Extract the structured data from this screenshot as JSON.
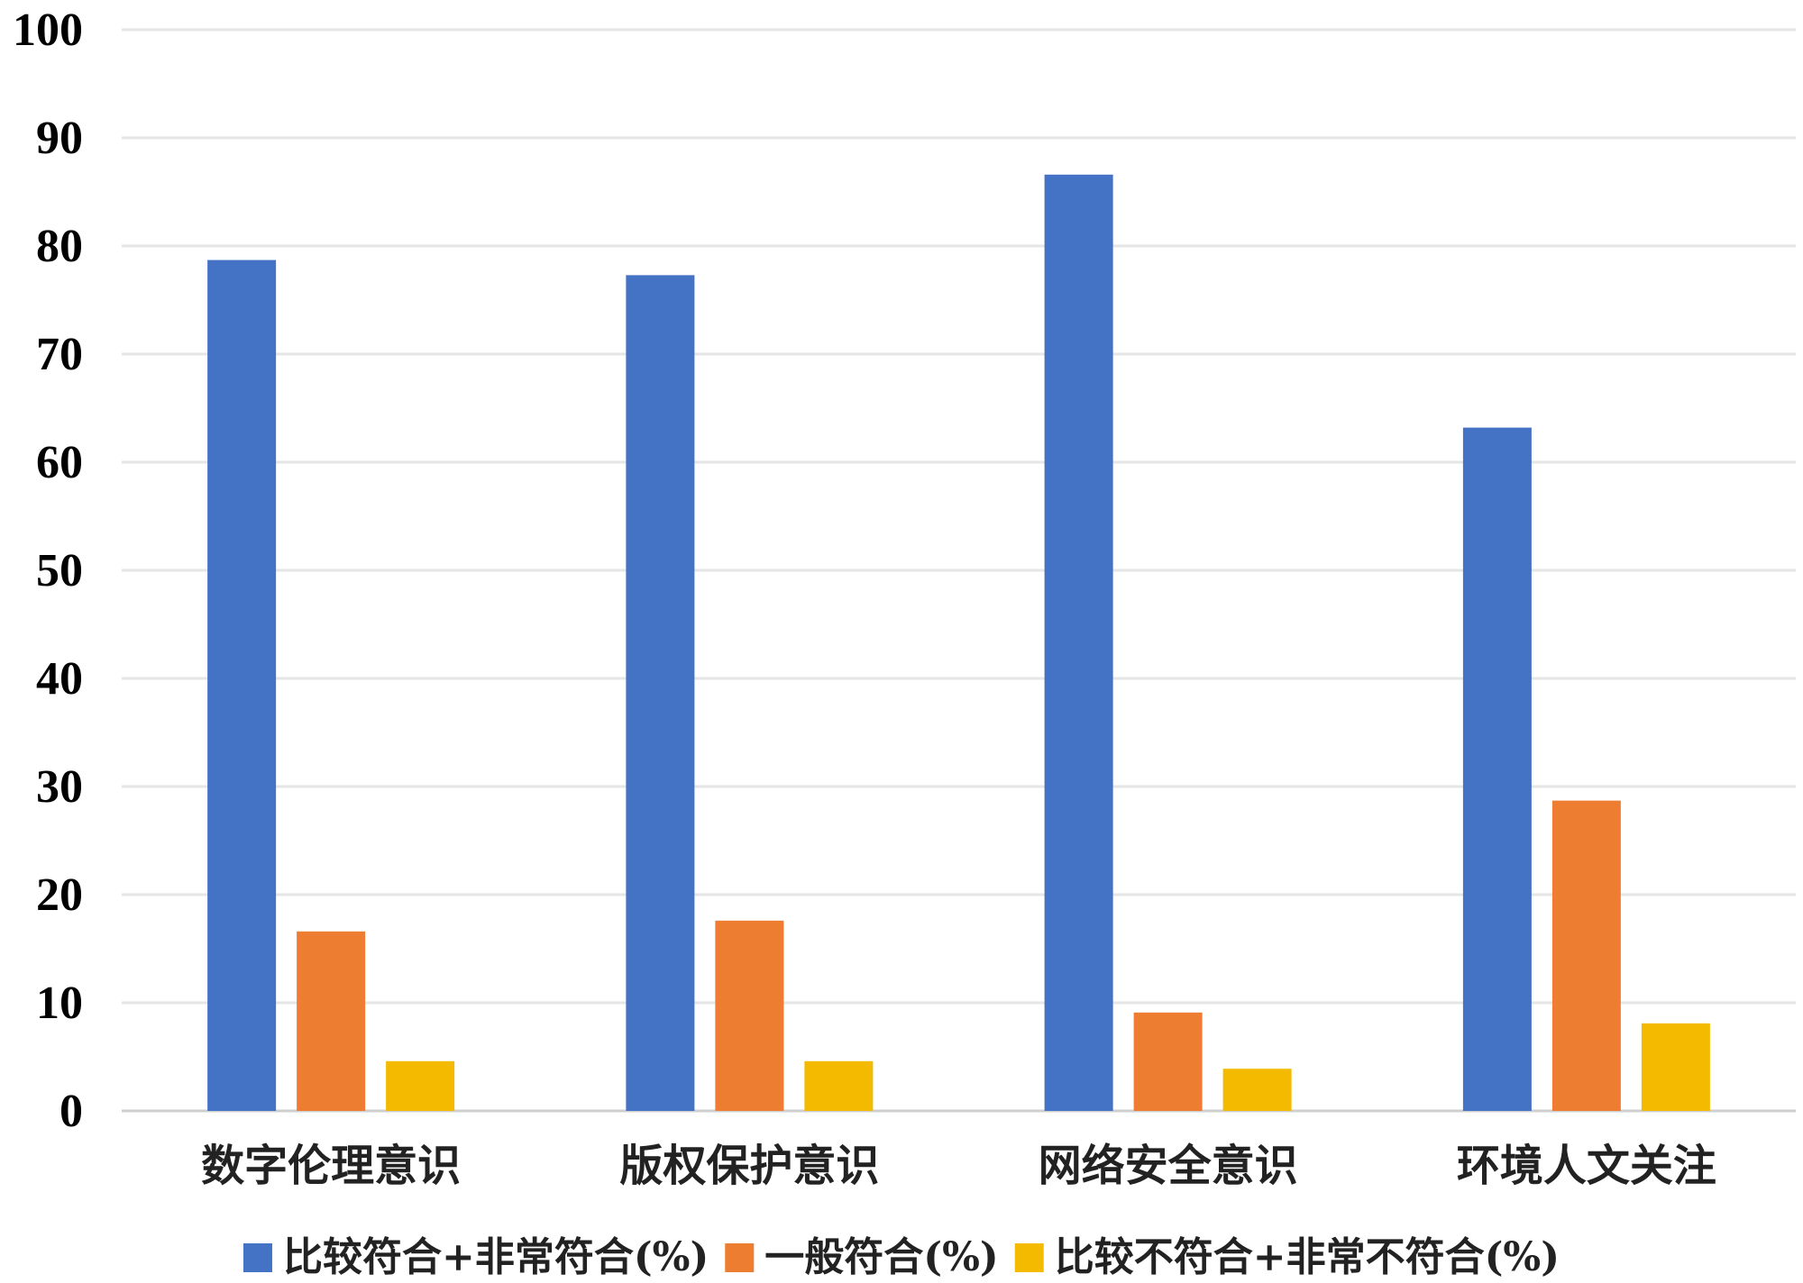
{
  "chart_data": {
    "type": "bar",
    "title": "",
    "xlabel": "",
    "ylabel": "",
    "ylim": [
      0,
      100
    ],
    "yticks": [
      0,
      10,
      20,
      30,
      40,
      50,
      60,
      70,
      80,
      90,
      100
    ],
    "grid": true,
    "legend_position": "bottom",
    "categories": [
      "数字伦理意识",
      "版权保护意识",
      "网络安全意识",
      "环境人文关注"
    ],
    "series": [
      {
        "name": "比较符合+非常符合(%)",
        "color": "#4472C4",
        "values": [
          78.7,
          77.3,
          86.6,
          63.2
        ]
      },
      {
        "name": "一般符合(%)",
        "color": "#ED7D31",
        "values": [
          16.6,
          17.6,
          9.1,
          28.7
        ]
      },
      {
        "name": "比较不符合+非常不符合(%)",
        "color": "#F4BA00",
        "values": [
          4.6,
          4.6,
          3.9,
          8.1
        ]
      }
    ]
  }
}
